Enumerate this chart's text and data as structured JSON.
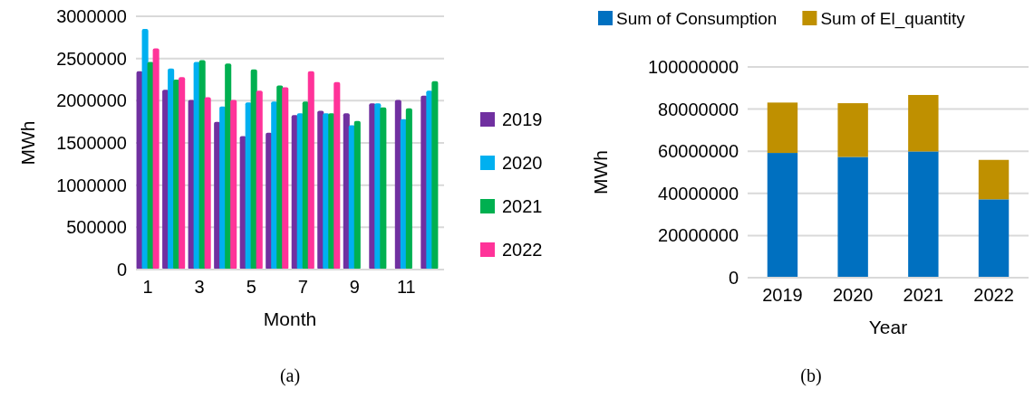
{
  "chart_data": [
    {
      "type": "bar",
      "xlabel": "Month",
      "ylabel": "MWh",
      "categories": [
        "1",
        null,
        "3",
        null,
        "5",
        null,
        "7",
        null,
        "9",
        null,
        "11",
        null
      ],
      "ylim": [
        0,
        3000000
      ],
      "yticks": [
        0,
        500000,
        1000000,
        1500000,
        2000000,
        2500000,
        3000000
      ],
      "grid": "y",
      "legend": "right",
      "annotations": [
        "(a)"
      ],
      "series": [
        {
          "name": "2019",
          "color": "#7030a0",
          "values": [
            2350000,
            2130000,
            2010000,
            1750000,
            1580000,
            1620000,
            1830000,
            1880000,
            1850000,
            1970000,
            2010000,
            2060000
          ]
        },
        {
          "name": "2020",
          "color": "#00b0f0",
          "values": [
            2850000,
            2380000,
            2460000,
            1930000,
            1980000,
            1990000,
            1850000,
            1850000,
            1710000,
            1970000,
            1780000,
            2120000
          ]
        },
        {
          "name": "2021",
          "color": "#00b050",
          "values": [
            2460000,
            2250000,
            2480000,
            2440000,
            2370000,
            2180000,
            1990000,
            1850000,
            1760000,
            1920000,
            1910000,
            2230000
          ]
        },
        {
          "name": "2022",
          "color": "#ff3399",
          "values": [
            2620000,
            2280000,
            2040000,
            2010000,
            2120000,
            2160000,
            2350000,
            2220000,
            null,
            null,
            null,
            null
          ]
        }
      ]
    },
    {
      "type": "bar",
      "stacked": true,
      "xlabel": "Year",
      "ylabel": "MWh",
      "categories": [
        "2019",
        "2020",
        "2021",
        "2022"
      ],
      "ylim": [
        0,
        100000000
      ],
      "yticks": [
        0,
        20000000,
        40000000,
        60000000,
        80000000,
        100000000
      ],
      "grid": "y",
      "legend": "top",
      "annotations": [
        "(b)"
      ],
      "series": [
        {
          "name": "Sum of Consumption",
          "color": "#0070c0",
          "values": [
            59200000,
            57300000,
            59900000,
            37200000
          ]
        },
        {
          "name": "Sum of El_quantity",
          "color": "#bf9000",
          "values": [
            23900000,
            25500000,
            26800000,
            18700000
          ]
        }
      ]
    }
  ]
}
